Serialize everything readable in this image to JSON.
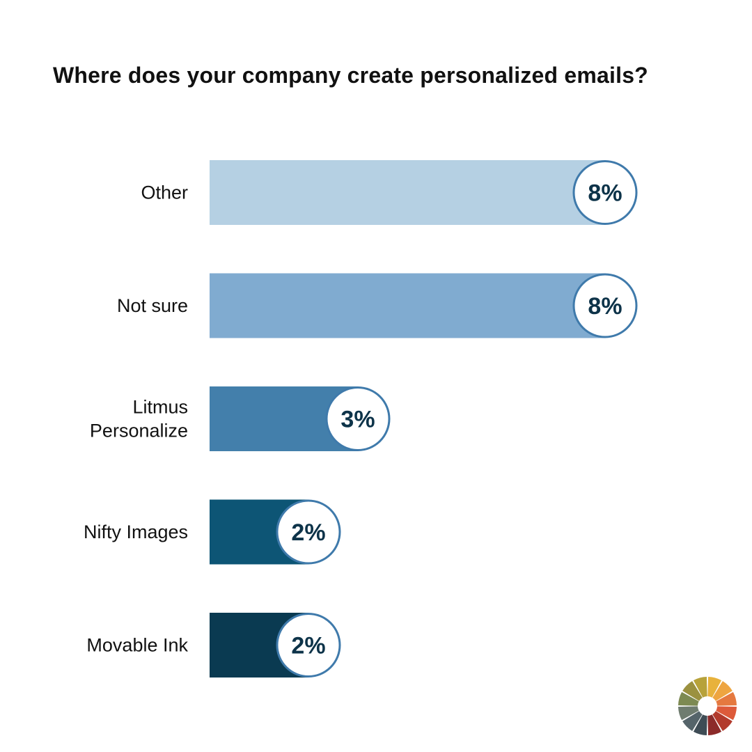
{
  "chart_data": {
    "type": "bar",
    "orientation": "horizontal",
    "title": "Where does your company create personalized emails?",
    "categories": [
      "Other",
      "Not sure",
      "Litmus\nPersonalize",
      "Nifty Images",
      "Movable Ink"
    ],
    "values": [
      8,
      8,
      3,
      2,
      2
    ],
    "value_labels": [
      "8%",
      "8%",
      "3%",
      "2%",
      "2%"
    ],
    "colors": [
      "#b5d0e3",
      "#80abd0",
      "#437fab",
      "#0d5575",
      "#0a3a51"
    ],
    "badge_border": "#3f7aab",
    "grid": false,
    "legend": "none"
  },
  "logo": {
    "name": "color-wheel-icon"
  }
}
